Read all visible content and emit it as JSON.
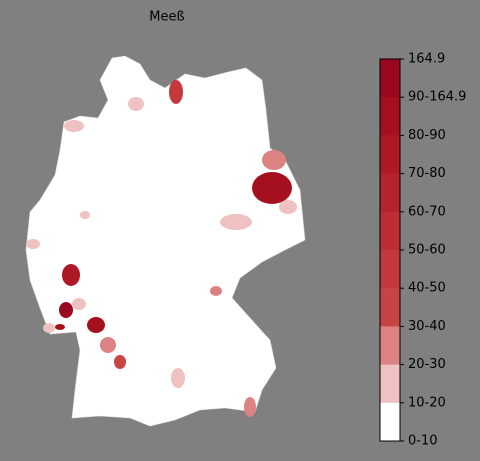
{
  "title": "Meeß",
  "colorbar": {
    "labels": [
      "164.9",
      "90-164.9",
      "80-90",
      "70-80",
      "60-70",
      "50-60",
      "40-50",
      "30-40",
      "20-30",
      "10-20",
      "0-10"
    ],
    "colors": [
      "#99081f",
      "#a5101f",
      "#ad1a26",
      "#b5232d",
      "#bd2e34",
      "#c2383b",
      "#c74444",
      "#dc8282",
      "#efc1c1",
      "#ffffff"
    ]
  }
}
